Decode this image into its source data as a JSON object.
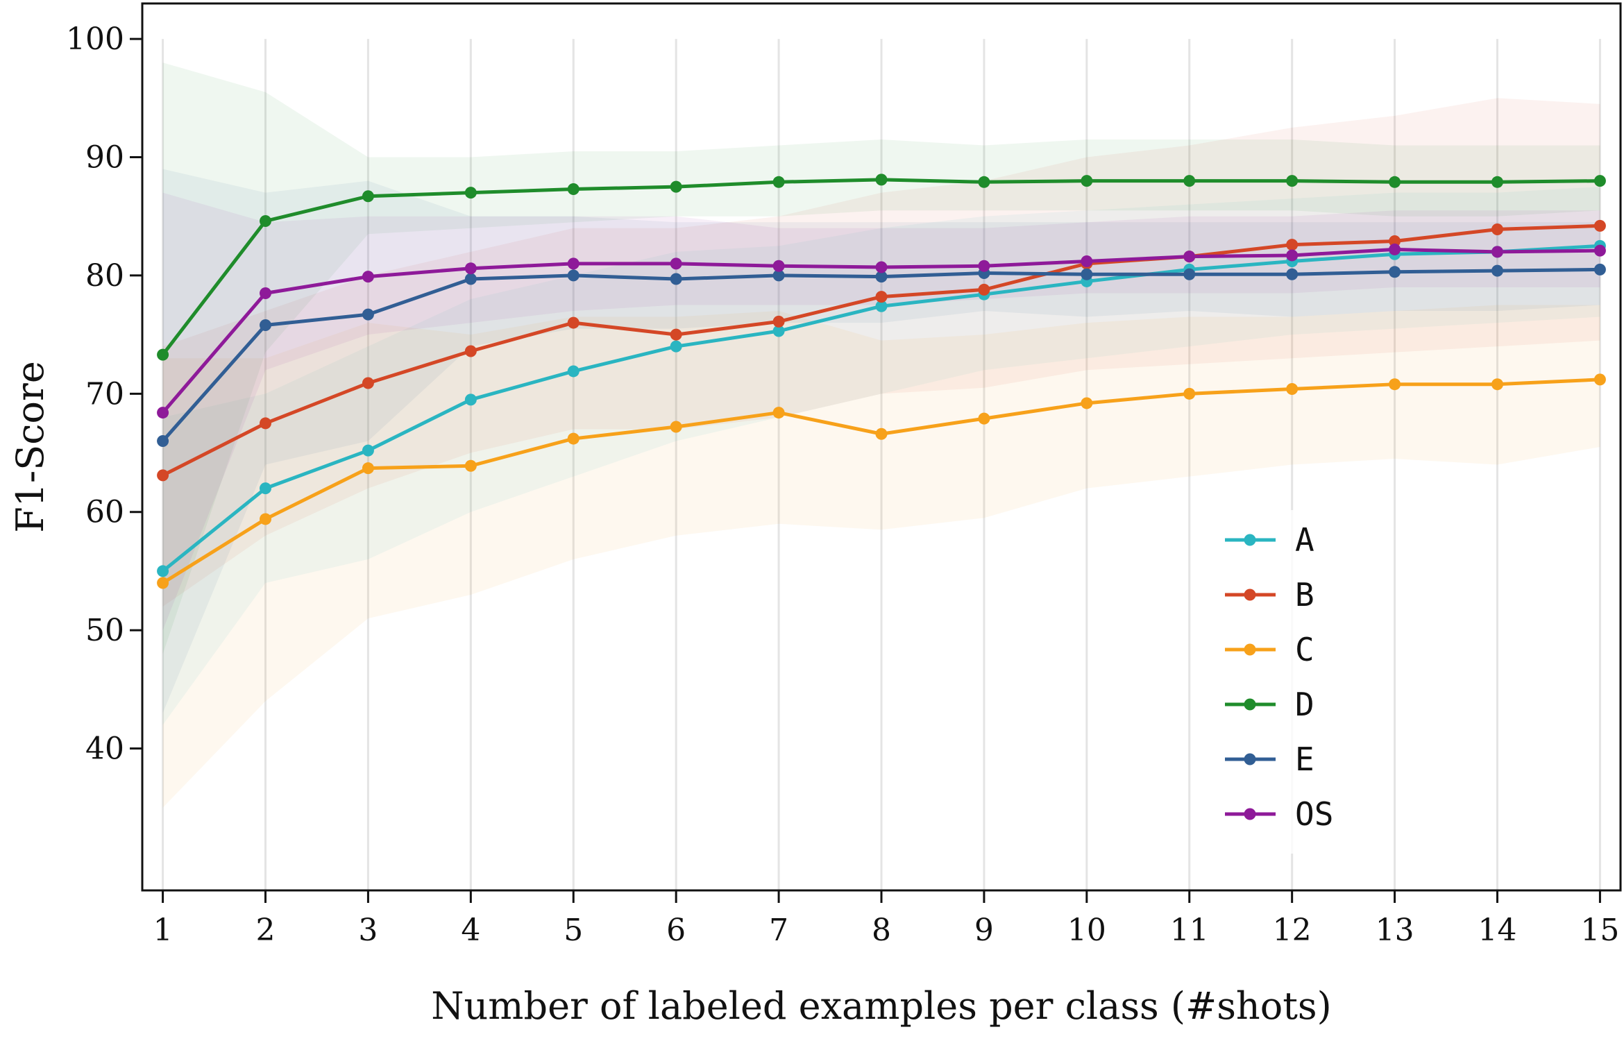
{
  "chart_data": {
    "type": "line",
    "title": "",
    "xlabel": "Number of labeled examples per class (#shots)",
    "ylabel": "F1-Score",
    "x": [
      1,
      2,
      3,
      4,
      5,
      6,
      7,
      8,
      9,
      10,
      11,
      12,
      13,
      14,
      15
    ],
    "xlim": [
      0.8,
      15.2
    ],
    "ylim": [
      28,
      103
    ],
    "yticks": [
      40,
      50,
      60,
      70,
      80,
      90,
      100
    ],
    "grid": "vertical",
    "legend_position": "lower-right",
    "series": [
      {
        "name": "A",
        "color": "#2ab5c1",
        "values": [
          55.0,
          62.0,
          65.2,
          69.5,
          71.9,
          74.0,
          75.3,
          77.4,
          78.4,
          79.5,
          80.5,
          81.2,
          81.8,
          82.0,
          82.5
        ],
        "band_lower": [
          42,
          54,
          56,
          60,
          63,
          66,
          68,
          70,
          72,
          73,
          74,
          75,
          75.5,
          76,
          76.5
        ],
        "band_upper": [
          68,
          70,
          74,
          78,
          80,
          82,
          82.5,
          84,
          85,
          85.5,
          86,
          86.5,
          87,
          87,
          87.5
        ]
      },
      {
        "name": "B",
        "color": "#d44726",
        "values": [
          63.1,
          67.5,
          70.9,
          73.6,
          76.0,
          75.0,
          76.1,
          78.2,
          78.8,
          81.0,
          81.6,
          82.6,
          82.9,
          83.9,
          84.2
        ],
        "band_lower": [
          52,
          58,
          62,
          65,
          67,
          67,
          68,
          70,
          70.5,
          72,
          72.5,
          73,
          73.5,
          74,
          74.5
        ],
        "band_upper": [
          74,
          77,
          80,
          82,
          84,
          84,
          85,
          87,
          88,
          90,
          91,
          92.5,
          93.5,
          95,
          94.5
        ]
      },
      {
        "name": "C",
        "color": "#f7a11a",
        "values": [
          54.0,
          59.4,
          63.7,
          63.9,
          66.2,
          67.2,
          68.4,
          66.6,
          67.9,
          69.2,
          70.0,
          70.4,
          70.8,
          70.8,
          71.2
        ],
        "band_lower": [
          35,
          44,
          51,
          53,
          56,
          58,
          59,
          58.5,
          59.5,
          62,
          63,
          64,
          64.5,
          64,
          65.5
        ],
        "band_upper": [
          73,
          73,
          76,
          75,
          76.5,
          76.5,
          77,
          74.5,
          75,
          76,
          76.5,
          76.5,
          77,
          77.5,
          77.5
        ]
      },
      {
        "name": "D",
        "color": "#1f8c2b",
        "values": [
          73.3,
          84.6,
          86.7,
          87.0,
          87.3,
          87.5,
          87.9,
          88.1,
          87.9,
          88.0,
          88.0,
          88.0,
          87.9,
          87.9,
          88.0
        ],
        "band_lower": [
          48,
          73.5,
          83.5,
          84,
          84.5,
          85,
          85,
          85.5,
          85.5,
          85.5,
          85.5,
          85.5,
          85,
          85,
          85.5
        ],
        "band_upper": [
          98,
          95.5,
          90,
          90,
          90.5,
          90.5,
          91,
          91.5,
          91,
          91.5,
          91.5,
          91.5,
          91,
          91,
          91
        ]
      },
      {
        "name": "E",
        "color": "#315e94",
        "values": [
          66.0,
          75.8,
          76.7,
          79.7,
          80.0,
          79.7,
          80.0,
          79.9,
          80.2,
          80.1,
          80.1,
          80.1,
          80.3,
          80.4,
          80.5
        ],
        "band_lower": [
          43,
          64,
          66,
          74,
          75.5,
          75.5,
          76,
          76,
          77,
          76.5,
          77,
          76.5,
          77,
          77,
          77.5
        ],
        "band_upper": [
          89,
          87,
          88,
          85,
          85,
          84.5,
          84.5,
          84.5,
          84.5,
          84.5,
          84.5,
          84.5,
          84.5,
          84.5,
          84.5
        ]
      },
      {
        "name": "OS",
        "color": "#8e1a99",
        "values": [
          68.4,
          78.5,
          79.9,
          80.6,
          81.0,
          81.0,
          80.8,
          80.7,
          80.8,
          81.2,
          81.6,
          81.7,
          82.2,
          82.0,
          82.1
        ],
        "band_lower": [
          50,
          72,
          75,
          76,
          77,
          77.5,
          77.5,
          77.5,
          78,
          78.5,
          78.5,
          78.5,
          79,
          79,
          79
        ],
        "band_upper": [
          87,
          84.5,
          85,
          85,
          85,
          85,
          84,
          84,
          84,
          84.5,
          85,
          85,
          85.5,
          85.5,
          85.5
        ]
      }
    ]
  }
}
